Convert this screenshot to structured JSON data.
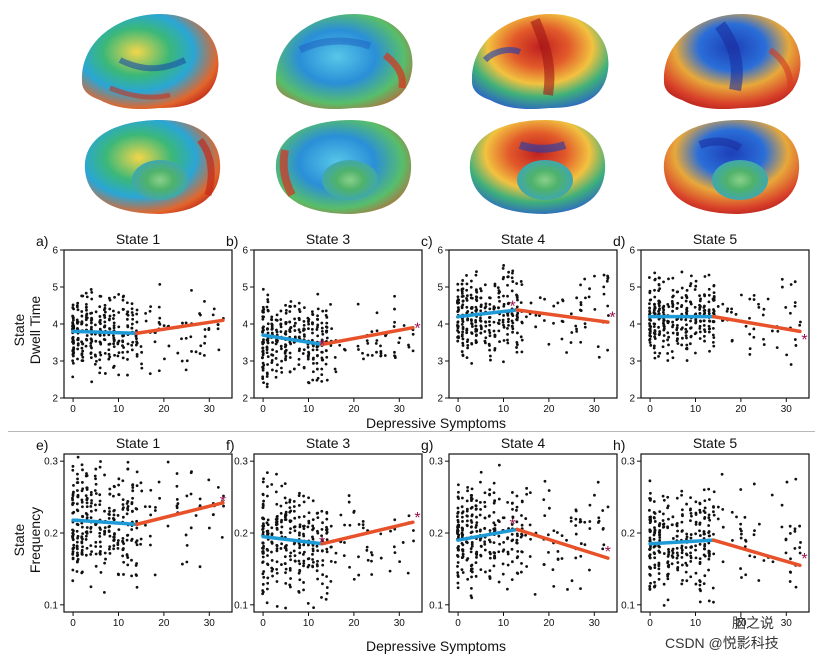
{
  "brain_panels": [
    "State 1",
    "State 3",
    "State 4",
    "State 5"
  ],
  "row_labels": {
    "dwell": [
      "State",
      "Dwell Time"
    ],
    "freq": [
      "State",
      "Frequency"
    ]
  },
  "x_axis_label": "Depressive Symptoms",
  "watermark": {
    "line1": "脑之说",
    "line2": "CSDN @悦影科技"
  },
  "colors": {
    "low_segment": "#1e9bd7",
    "high_segment": "#e8522a",
    "marker": "#a01050",
    "points": "#111111"
  },
  "chart_data": [
    {
      "letter": "a)",
      "title": "State 1",
      "type": "scatter",
      "measure": "Dwell Time",
      "ylim": [
        2,
        6
      ],
      "yticks": [
        2,
        3,
        4,
        5,
        6
      ],
      "xlim": [
        -2,
        35
      ],
      "xticks": [
        0,
        10,
        20,
        30
      ],
      "fit": {
        "low": [
          [
            0,
            3.8
          ],
          [
            14,
            3.75
          ]
        ],
        "high": [
          [
            14,
            3.75
          ],
          [
            33,
            4.1
          ]
        ]
      },
      "markers": []
    },
    {
      "letter": "b)",
      "title": "State 3",
      "type": "scatter",
      "measure": "Dwell Time",
      "ylim": [
        2,
        6
      ],
      "yticks": [
        2,
        3,
        4,
        5,
        6
      ],
      "xlim": [
        -2,
        35
      ],
      "xticks": [
        0,
        10,
        20,
        30
      ],
      "fit": {
        "low": [
          [
            0,
            3.7
          ],
          [
            13,
            3.45
          ]
        ],
        "high": [
          [
            13,
            3.45
          ],
          [
            33,
            3.9
          ]
        ]
      },
      "markers": [
        [
          13,
          3.45
        ],
        [
          34,
          3.9
        ]
      ]
    },
    {
      "letter": "c)",
      "title": "State 4",
      "type": "scatter",
      "measure": "Dwell Time",
      "ylim": [
        2,
        6
      ],
      "yticks": [
        2,
        3,
        4,
        5,
        6
      ],
      "xlim": [
        -2,
        35
      ],
      "xticks": [
        0,
        10,
        20,
        30
      ],
      "fit": {
        "low": [
          [
            0,
            4.2
          ],
          [
            13,
            4.38
          ]
        ],
        "high": [
          [
            13,
            4.38
          ],
          [
            33,
            4.05
          ]
        ]
      },
      "markers": [
        [
          12,
          4.5
        ],
        [
          34,
          4.2
        ]
      ]
    },
    {
      "letter": "d)",
      "title": "State 5",
      "type": "scatter",
      "measure": "Dwell Time",
      "ylim": [
        2,
        6
      ],
      "yticks": [
        2,
        3,
        4,
        5,
        6
      ],
      "xlim": [
        -2,
        35
      ],
      "xticks": [
        0,
        10,
        20,
        30
      ],
      "fit": {
        "low": [
          [
            0,
            4.2
          ],
          [
            14,
            4.2
          ]
        ],
        "high": [
          [
            14,
            4.2
          ],
          [
            33,
            3.8
          ]
        ]
      },
      "markers": [
        [
          34,
          3.6
        ]
      ]
    },
    {
      "letter": "e)",
      "title": "State 1",
      "type": "scatter",
      "measure": "Frequency",
      "ylim": [
        0.09,
        0.31
      ],
      "yticks": [
        0.1,
        0.2,
        0.3
      ],
      "xlim": [
        -2,
        35
      ],
      "xticks": [
        0,
        10,
        20,
        30
      ],
      "fit": {
        "low": [
          [
            0,
            0.218
          ],
          [
            14,
            0.212
          ]
        ],
        "high": [
          [
            14,
            0.212
          ],
          [
            33,
            0.242
          ]
        ]
      },
      "markers": [
        [
          33,
          0.245
        ]
      ]
    },
    {
      "letter": "f)",
      "title": "State 3",
      "type": "scatter",
      "measure": "Frequency",
      "ylim": [
        0.09,
        0.31
      ],
      "yticks": [
        0.1,
        0.2,
        0.3
      ],
      "xlim": [
        -2,
        35
      ],
      "xticks": [
        0,
        10,
        20,
        30
      ],
      "fit": {
        "low": [
          [
            0,
            0.195
          ],
          [
            13,
            0.185
          ]
        ],
        "high": [
          [
            13,
            0.185
          ],
          [
            33,
            0.215
          ]
        ]
      },
      "markers": [
        [
          13,
          0.188
        ],
        [
          34,
          0.222
        ]
      ]
    },
    {
      "letter": "g)",
      "title": "State 4",
      "type": "scatter",
      "measure": "Frequency",
      "ylim": [
        0.09,
        0.31
      ],
      "yticks": [
        0.1,
        0.2,
        0.3
      ],
      "xlim": [
        -2,
        35
      ],
      "xticks": [
        0,
        10,
        20,
        30
      ],
      "fit": {
        "low": [
          [
            0,
            0.19
          ],
          [
            13,
            0.205
          ]
        ],
        "high": [
          [
            13,
            0.205
          ],
          [
            33,
            0.165
          ]
        ]
      },
      "markers": [
        [
          12,
          0.213
        ],
        [
          33,
          0.175
        ]
      ]
    },
    {
      "letter": "h)",
      "title": "State 5",
      "type": "scatter",
      "measure": "Frequency",
      "ylim": [
        0.09,
        0.31
      ],
      "yticks": [
        0.1,
        0.2,
        0.3
      ],
      "xlim": [
        -2,
        35
      ],
      "xticks": [
        0,
        10,
        20,
        30
      ],
      "fit": {
        "low": [
          [
            0,
            0.185
          ],
          [
            14,
            0.19
          ]
        ],
        "high": [
          [
            14,
            0.19
          ],
          [
            33,
            0.155
          ]
        ]
      },
      "markers": [
        [
          34,
          0.165
        ]
      ]
    }
  ]
}
